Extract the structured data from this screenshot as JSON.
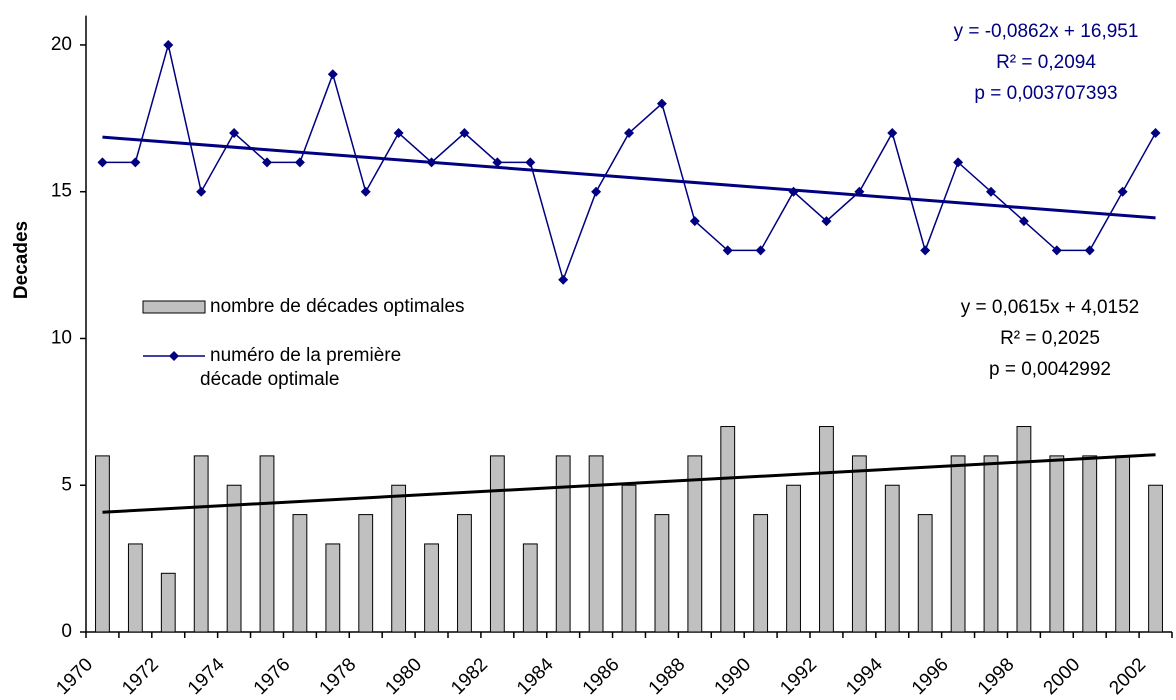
{
  "chart_data": {
    "type": "bar-line",
    "y_label": "Decades",
    "categories": [
      "1970",
      null,
      "1972",
      null,
      "1974",
      null,
      "1976",
      null,
      "1978",
      null,
      "1980",
      null,
      "1982",
      null,
      "1984",
      null,
      "1986",
      null,
      "1988",
      null,
      "1990",
      null,
      "1992",
      null,
      "1994",
      null,
      "1996",
      null,
      "1998",
      null,
      "2000",
      null,
      "2002"
    ],
    "series": [
      {
        "name": "nombre de décades optimales",
        "type": "bar",
        "color": "#c0c0c0",
        "values": [
          6,
          3,
          2,
          6,
          5,
          6,
          4,
          3,
          4,
          5,
          3,
          4,
          6,
          3,
          6,
          6,
          5,
          4,
          6,
          7,
          4,
          5,
          7,
          6,
          5,
          4,
          6,
          6,
          7,
          6,
          6,
          6,
          5
        ]
      },
      {
        "name": "numéro de la première décade optimale",
        "type": "line",
        "color": "#000080",
        "values": [
          16,
          16,
          20,
          15,
          17,
          16,
          16,
          19,
          15,
          17,
          16,
          17,
          16,
          16,
          12,
          15,
          17,
          18,
          14,
          13,
          13,
          15,
          14,
          15,
          17,
          13,
          16,
          15,
          14,
          13,
          13,
          15,
          17
        ]
      }
    ],
    "trendlines": [
      {
        "color": "#000080",
        "values": [
          16.86,
          14.11
        ]
      },
      {
        "color": "#000000",
        "values": [
          4.08,
          6.04
        ]
      }
    ],
    "annotations": [
      {
        "color": "#000080",
        "lines": [
          "y = -0,0862x + 16,951",
          "R² = 0,2094",
          "p = 0,003707393"
        ]
      },
      {
        "color": "#000000",
        "lines": [
          "y = 0,0615x + 4,0152",
          "R² = 0,2025",
          "p = 0,0042992"
        ]
      }
    ],
    "ylim": [
      0,
      21
    ],
    "yticks": [
      0,
      5,
      10,
      15,
      20
    ]
  }
}
